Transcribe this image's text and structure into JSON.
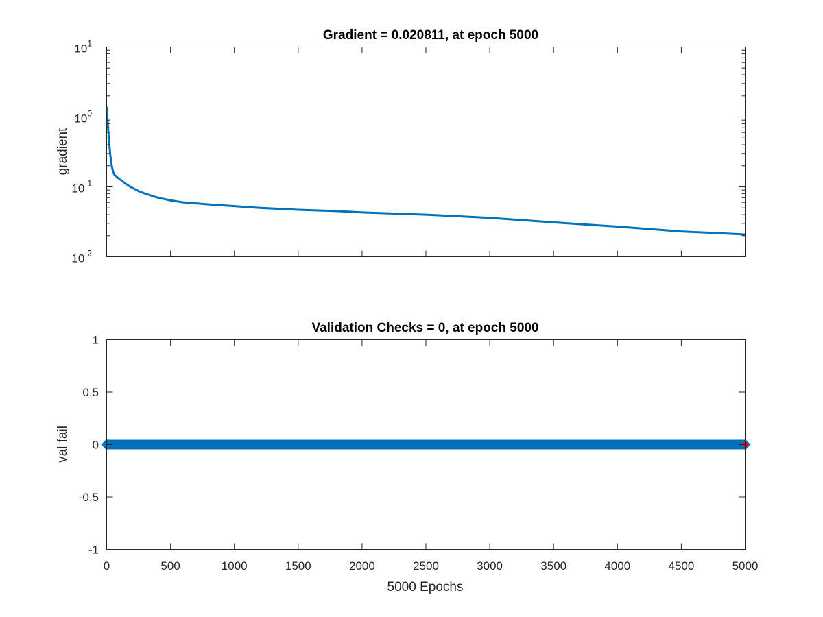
{
  "chart_data": [
    {
      "type": "line",
      "title": "Gradient = 0.020811, at epoch 5000",
      "xlabel": "",
      "ylabel": "gradient",
      "yscale": "log",
      "xlim": [
        0,
        5000
      ],
      "ylim": [
        0.01,
        10
      ],
      "x_ticks": [
        0,
        500,
        1000,
        1500,
        2000,
        2500,
        3000,
        3500,
        4000,
        4500,
        5000
      ],
      "x_tick_labels_visible": false,
      "y_ticks": [
        {
          "base": "10",
          "exp": "-2",
          "value": 0.01
        },
        {
          "base": "10",
          "exp": "-1",
          "value": 0.1
        },
        {
          "base": "10",
          "exp": "0",
          "value": 1
        },
        {
          "base": "10",
          "exp": "1",
          "value": 10
        }
      ],
      "grid": false,
      "series": [
        {
          "color": "#0072BD",
          "x": [
            0,
            10,
            20,
            30,
            40,
            50,
            60,
            80,
            100,
            150,
            200,
            250,
            300,
            400,
            500,
            600,
            700,
            800,
            1000,
            1200,
            1500,
            1800,
            2000,
            2500,
            3000,
            3500,
            4000,
            4500,
            5000
          ],
          "y": [
            1.4,
            0.75,
            0.42,
            0.27,
            0.2,
            0.165,
            0.15,
            0.138,
            0.13,
            0.11,
            0.097,
            0.087,
            0.08,
            0.07,
            0.064,
            0.06,
            0.058,
            0.056,
            0.053,
            0.05,
            0.047,
            0.045,
            0.043,
            0.04,
            0.036,
            0.031,
            0.027,
            0.023,
            0.0208
          ]
        }
      ]
    },
    {
      "type": "scatter",
      "title": "Validation Checks = 0, at epoch 5000",
      "xlabel": "5000 Epochs",
      "ylabel": "val fail",
      "xlim": [
        0,
        5000
      ],
      "ylim": [
        -1,
        1
      ],
      "x_ticks": [
        "0",
        "500",
        "1000",
        "1500",
        "2000",
        "2500",
        "3000",
        "3500",
        "4000",
        "4500",
        "5000"
      ],
      "y_ticks": [
        "-1",
        "-0.5",
        "0",
        "0.5",
        "1"
      ],
      "grid": false,
      "series": [
        {
          "color": "#0072BD",
          "marker": "diamond",
          "x_range": [
            0,
            5000
          ],
          "y_constant": 0
        },
        {
          "color": "#FF0000",
          "marker": "diamond",
          "x": [
            5000
          ],
          "y": [
            0
          ]
        }
      ]
    }
  ]
}
